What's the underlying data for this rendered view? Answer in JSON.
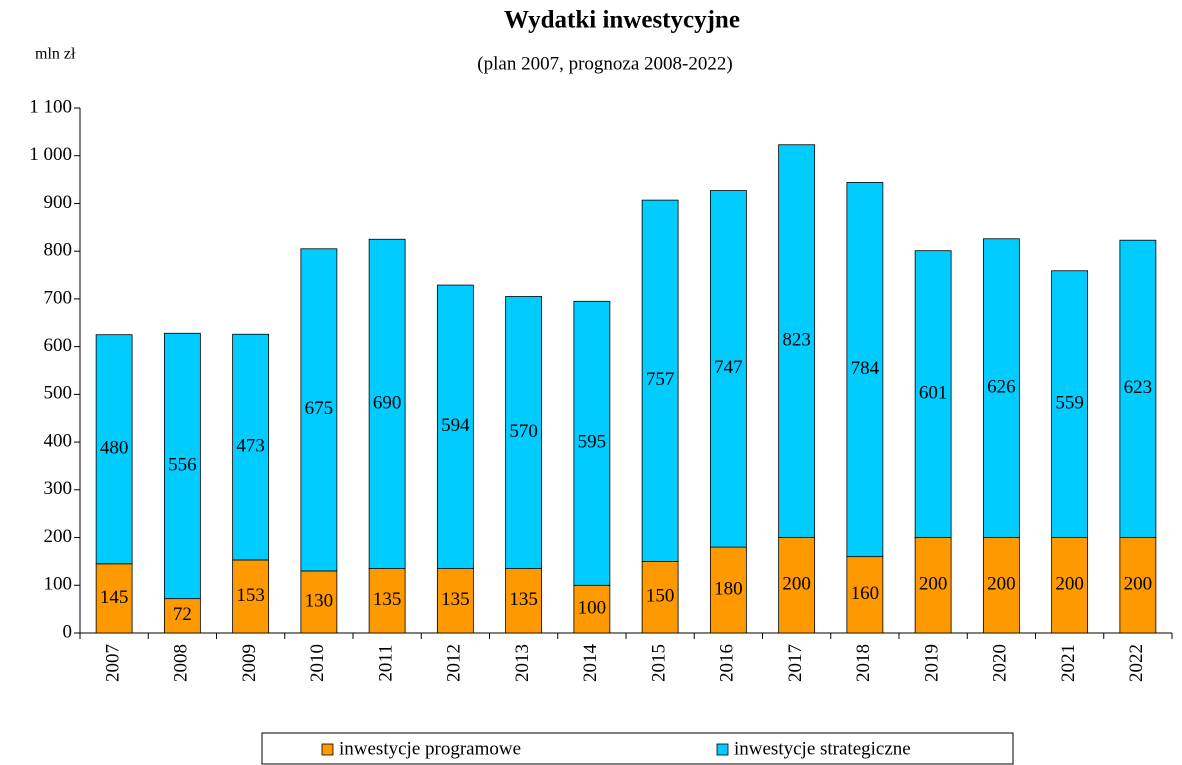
{
  "chart_data": {
    "type": "stacked_bar",
    "title": "Wydatki inwestycyjne",
    "subtitle": "(plan  2007, prognoza 2008-2022)",
    "y_axis_label": "mln zł",
    "categories": [
      "2007",
      "2008",
      "2009",
      "2010",
      "2011",
      "2012",
      "2013",
      "2014",
      "2015",
      "2016",
      "2017",
      "2018",
      "2019",
      "2020",
      "2021",
      "2022"
    ],
    "series": [
      {
        "name": "inwestycje programowe",
        "color": "#ff9900",
        "values": [
          145,
          72,
          153,
          130,
          135,
          135,
          135,
          100,
          150,
          180,
          200,
          160,
          200,
          200,
          200,
          200
        ]
      },
      {
        "name": "inwestycje strategiczne",
        "color": "#00ccff",
        "values": [
          480,
          556,
          473,
          675,
          690,
          594,
          570,
          595,
          757,
          747,
          823,
          784,
          601,
          626,
          559,
          623
        ]
      }
    ],
    "ylim": [
      0,
      1100
    ],
    "yticks": [
      0,
      100,
      200,
      300,
      400,
      500,
      600,
      700,
      800,
      900,
      {
        "value": 1000,
        "label": "1 000"
      },
      {
        "value": 1100,
        "label": "1 100"
      }
    ],
    "grid": false,
    "legend": "bottom"
  }
}
